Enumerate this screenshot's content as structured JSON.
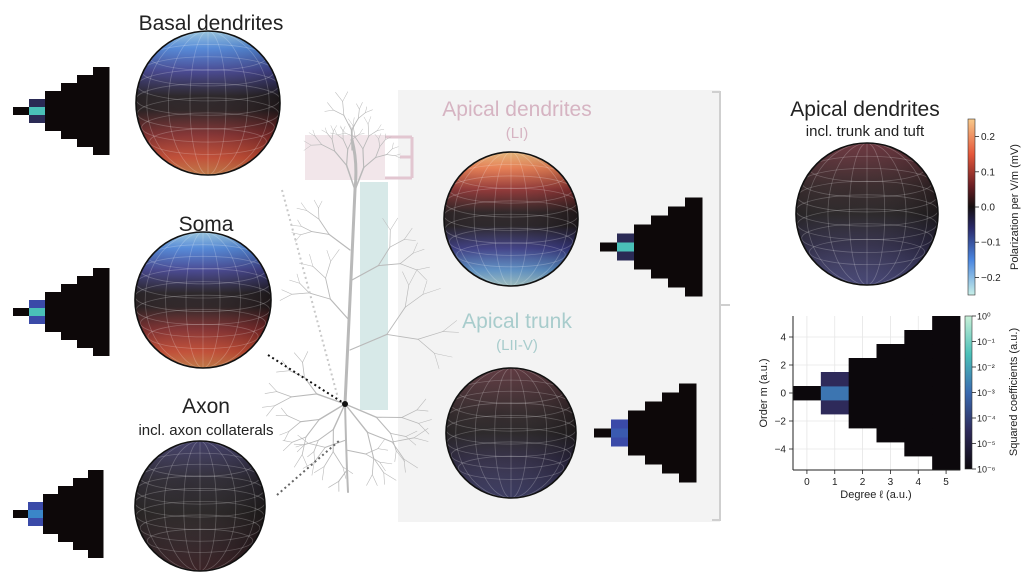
{
  "panels": {
    "basal": {
      "title": "Basal dendrites"
    },
    "soma": {
      "title": "Soma"
    },
    "axon": {
      "title": "Axon",
      "subtitle": "incl. axon collaterals"
    },
    "apical_li": {
      "title": "Apical dendrites",
      "subtitle": "(LI)"
    },
    "apical_trunk": {
      "title": "Apical trunk",
      "subtitle": "(LII-V)"
    },
    "apical_all": {
      "title": "Apical dendrites",
      "subtitle": "incl. trunk and tuft"
    }
  },
  "polarization_colorbar": {
    "label": "Polarization per V/m (mV)",
    "ticks": [
      "0.2",
      "0.1",
      "0.0",
      "−0.1",
      "−0.2"
    ],
    "range": [
      -0.25,
      0.25
    ]
  },
  "coefficients_colorbar": {
    "label": "Squared coefficients (a.u.)",
    "ticks": [
      "10⁰",
      "10⁻¹",
      "10⁻²",
      "10⁻³",
      "10⁻⁴",
      "10⁻⁵",
      "10⁻⁶"
    ]
  },
  "chart_data": {
    "type": "heatmap",
    "xlabel": "Degree ℓ (a.u.)",
    "ylabel": "Order m (a.u.)",
    "xticks": [
      "0",
      "1",
      "2",
      "3",
      "4",
      "5"
    ],
    "yticks": [
      "4",
      "2",
      "0",
      "−2",
      "−4"
    ],
    "xlim": [
      -0.5,
      5.5
    ],
    "ylim": [
      -5.5,
      5.5
    ],
    "color_scale": "log",
    "cells_log10": [
      {
        "l": 0,
        "m": 0,
        "v": -6
      },
      {
        "l": 1,
        "m": 1,
        "v": -4.5
      },
      {
        "l": 1,
        "m": 0,
        "v": -2.8
      },
      {
        "l": 1,
        "m": -1,
        "v": -4.5
      }
    ],
    "background_log10": -6
  },
  "colors": {
    "positive": "#f07a4a",
    "negative": "#6aa8e8",
    "apical_li_accent": "#d9b8c4",
    "apical_trunk_accent": "#a8cccc",
    "neuron": "#bdbdbd"
  }
}
